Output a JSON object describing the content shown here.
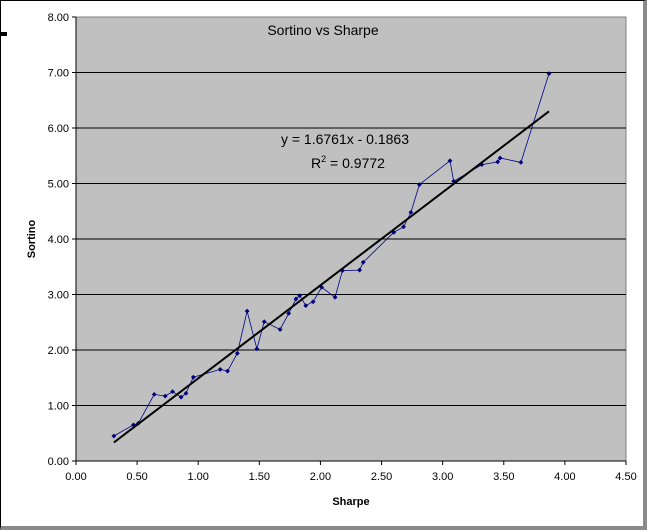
{
  "chart_data": {
    "type": "scatter",
    "title": "Sortino vs Sharpe",
    "xlabel": "Sharpe",
    "ylabel": "Sortino",
    "xlim": [
      0,
      4.5
    ],
    "ylim": [
      0,
      8
    ],
    "x_tick_labels": [
      "0.00",
      "0.50",
      "1.00",
      "1.50",
      "2.00",
      "2.50",
      "3.00",
      "3.50",
      "4.00",
      "4.50"
    ],
    "y_tick_labels": [
      "0.00",
      "1.00",
      "2.00",
      "3.00",
      "4.00",
      "5.00",
      "6.00",
      "7.00",
      "8.00"
    ],
    "grid": "horizontal",
    "series": [
      {
        "color": "#000080",
        "marker": "diamond",
        "connected": true,
        "points": [
          [
            0.31,
            0.45
          ],
          [
            0.47,
            0.65
          ],
          [
            0.51,
            0.68
          ],
          [
            0.64,
            1.2
          ],
          [
            0.73,
            1.17
          ],
          [
            0.79,
            1.25
          ],
          [
            0.86,
            1.15
          ],
          [
            0.9,
            1.22
          ],
          [
            0.96,
            1.51
          ],
          [
            1.18,
            1.65
          ],
          [
            1.24,
            1.62
          ],
          [
            1.32,
            1.94
          ],
          [
            1.4,
            2.7
          ],
          [
            1.48,
            2.02
          ],
          [
            1.54,
            2.51
          ],
          [
            1.67,
            2.37
          ],
          [
            1.74,
            2.66
          ],
          [
            1.8,
            2.92
          ],
          [
            1.83,
            2.98
          ],
          [
            1.88,
            2.8
          ],
          [
            1.94,
            2.87
          ],
          [
            2.01,
            3.13
          ],
          [
            2.12,
            2.95
          ],
          [
            2.18,
            3.43
          ],
          [
            2.32,
            3.44
          ],
          [
            2.35,
            3.58
          ],
          [
            2.6,
            4.12
          ],
          [
            2.68,
            4.22
          ],
          [
            2.74,
            4.48
          ],
          [
            2.81,
            4.98
          ],
          [
            3.06,
            5.41
          ],
          [
            3.09,
            5.04
          ],
          [
            3.32,
            5.34
          ],
          [
            3.45,
            5.39
          ],
          [
            3.47,
            5.46
          ],
          [
            3.64,
            5.38
          ],
          [
            3.87,
            6.98
          ]
        ]
      }
    ],
    "trendline": {
      "slope": 1.6761,
      "intercept": -0.1863,
      "x_range": [
        0.31,
        3.87
      ],
      "color": "#000000",
      "equation_label": "y = 1.6761x - 0.1863",
      "r2_prefix": "R",
      "r2_sup": "2",
      "r2_suffix": " = 0.9772"
    },
    "plot_background": "#c0c0c0",
    "gridline_color": "#000000"
  }
}
